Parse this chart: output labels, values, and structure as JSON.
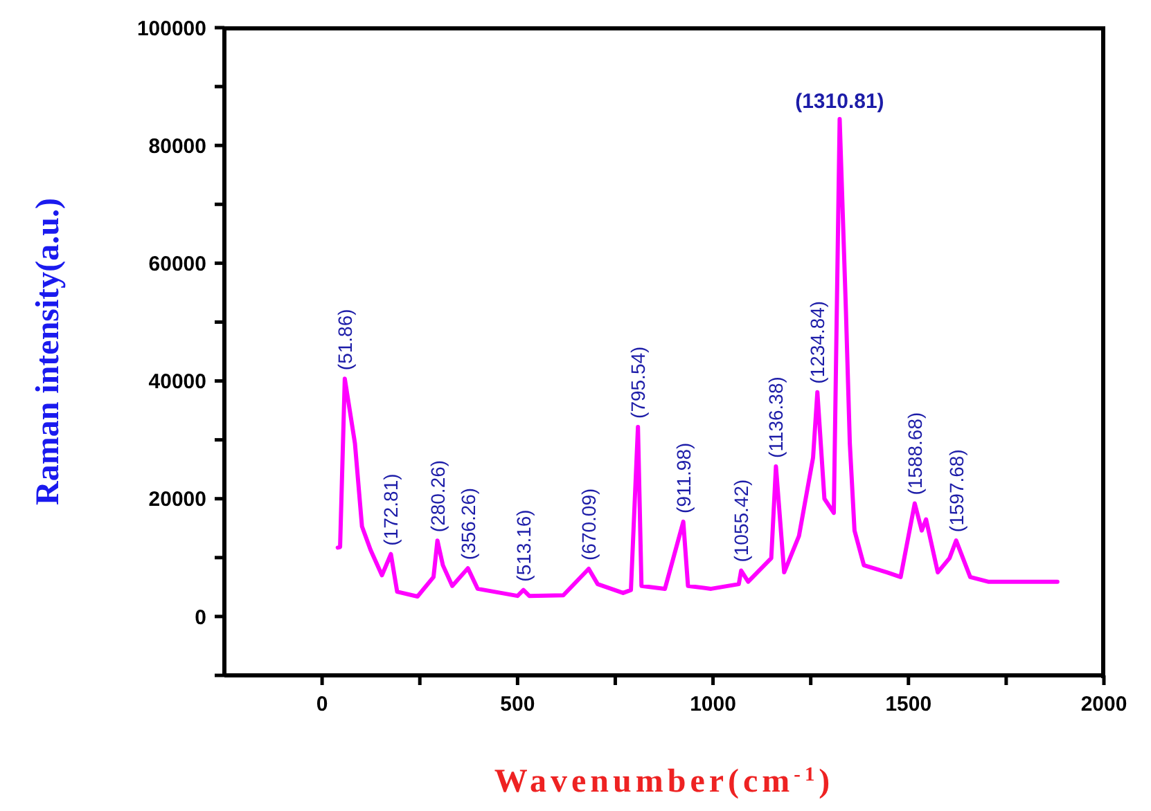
{
  "chart_data": {
    "type": "line",
    "xlabel": "Wavenumber(cm$^{-1}$)",
    "ylabel": "Raman intensity(a.u.)",
    "xlim": [
      -250,
      2000
    ],
    "ylim": [
      -10000,
      100000
    ],
    "xticks": [
      0,
      {
        "value": 250,
        "label": null
      },
      500,
      {
        "value": 750,
        "label": null
      },
      1000,
      {
        "value": 1250,
        "label": null
      },
      1500,
      {
        "value": 1750,
        "label": null
      },
      2000
    ],
    "yticks": [
      {
        "value": -10000,
        "label": null
      },
      0,
      {
        "value": 10000,
        "label": null
      },
      20000,
      {
        "value": 30000,
        "label": null
      },
      40000,
      {
        "value": 50000,
        "label": null
      },
      60000,
      {
        "value": 70000,
        "label": null
      },
      80000,
      {
        "value": 90000,
        "label": null
      },
      100000
    ],
    "marker": "none",
    "line_style": "solid",
    "series": [
      {
        "color": "#ff00ff",
        "x": [
          40,
          46,
          58,
          84,
          102,
          124,
          153,
          176,
          192,
          244,
          285,
          295,
          309,
          333,
          373,
          398,
          500,
          515,
          530,
          617,
          682,
          705,
          770,
          790,
          808,
          817,
          877,
          924,
          936,
          995,
          1066,
          1072,
          1090,
          1149,
          1161,
          1182,
          1220,
          1256,
          1267,
          1285,
          1309,
          1324,
          1340,
          1350,
          1362,
          1386,
          1445,
          1480,
          1516,
          1534,
          1545,
          1575,
          1605,
          1622,
          1658,
          1704,
          1881
        ],
        "values": [
          11700,
          11800,
          40400,
          29400,
          15300,
          11300,
          7000,
          10600,
          4200,
          3400,
          6700,
          12900,
          8700,
          5200,
          8200,
          4700,
          3500,
          4500,
          3500,
          3600,
          8100,
          5500,
          4000,
          4500,
          32200,
          5200,
          4700,
          16100,
          5200,
          4700,
          5500,
          7800,
          5900,
          9900,
          25500,
          7500,
          13700,
          27000,
          38100,
          20000,
          17600,
          84500,
          52000,
          29400,
          14600,
          8700,
          7500,
          6700,
          19200,
          14600,
          16500,
          7500,
          9900,
          12900,
          6700,
          5900,
          5900
        ]
      }
    ],
    "annotations": [
      {
        "text": "(51.86)",
        "x": 58,
        "y": 40400
      },
      {
        "text": "(172.81)",
        "x": 176,
        "y": 10600
      },
      {
        "text": "(280.26)",
        "x": 295,
        "y": 12900
      },
      {
        "text": "(356.26)",
        "x": 373,
        "y": 8200
      },
      {
        "text": "(513.16)",
        "x": 515,
        "y": 4500
      },
      {
        "text": "(670.09)",
        "x": 682,
        "y": 8100
      },
      {
        "text": "(795.54)",
        "x": 808,
        "y": 32200
      },
      {
        "text": "(911.98)",
        "x": 924,
        "y": 16100
      },
      {
        "text": "(1055.42)",
        "x": 1072,
        "y": 7800
      },
      {
        "text": "(1136.38)",
        "x": 1161,
        "y": 25500
      },
      {
        "text": "(1234.84)",
        "x": 1267,
        "y": 38100
      },
      {
        "text": "(1310.81)",
        "x": 1324,
        "y": 84500
      },
      {
        "text": "(1588.68)",
        "x": 1516,
        "y": 19200
      },
      {
        "text": "(1597.68)",
        "x": 1622,
        "y": 12900
      }
    ]
  }
}
